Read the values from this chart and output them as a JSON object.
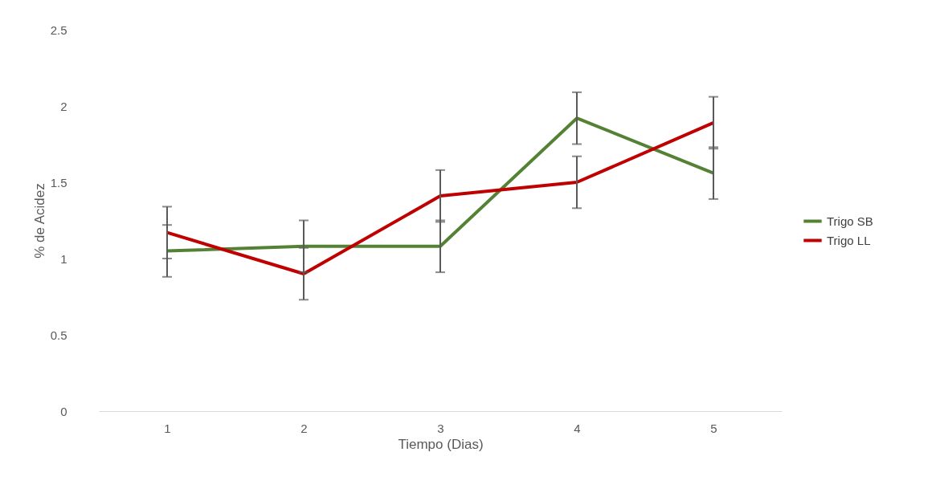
{
  "chart_data": {
    "type": "line",
    "xlabel": "Tiempo (Dias)",
    "ylabel": "% de Acidez",
    "categories": [
      "1",
      "2",
      "3",
      "4",
      "5"
    ],
    "ylim": [
      0,
      2.5
    ],
    "yticks": [
      0,
      0.5,
      1,
      1.5,
      2,
      2.5
    ],
    "grid": false,
    "legend": "right",
    "marker": "none",
    "line_style": "solid",
    "series": [
      {
        "name": "Trigo SB",
        "color": "#548235",
        "values": [
          1.05,
          1.08,
          1.08,
          1.92,
          1.56
        ],
        "errors": [
          0.17,
          0.17,
          0.17,
          0.17,
          0.17
        ]
      },
      {
        "name": "Trigo LL",
        "color": "#c00000",
        "values": [
          1.17,
          0.9,
          1.41,
          1.5,
          1.89
        ],
        "errors": [
          0.17,
          0.17,
          0.17,
          0.17,
          0.17
        ]
      }
    ]
  }
}
